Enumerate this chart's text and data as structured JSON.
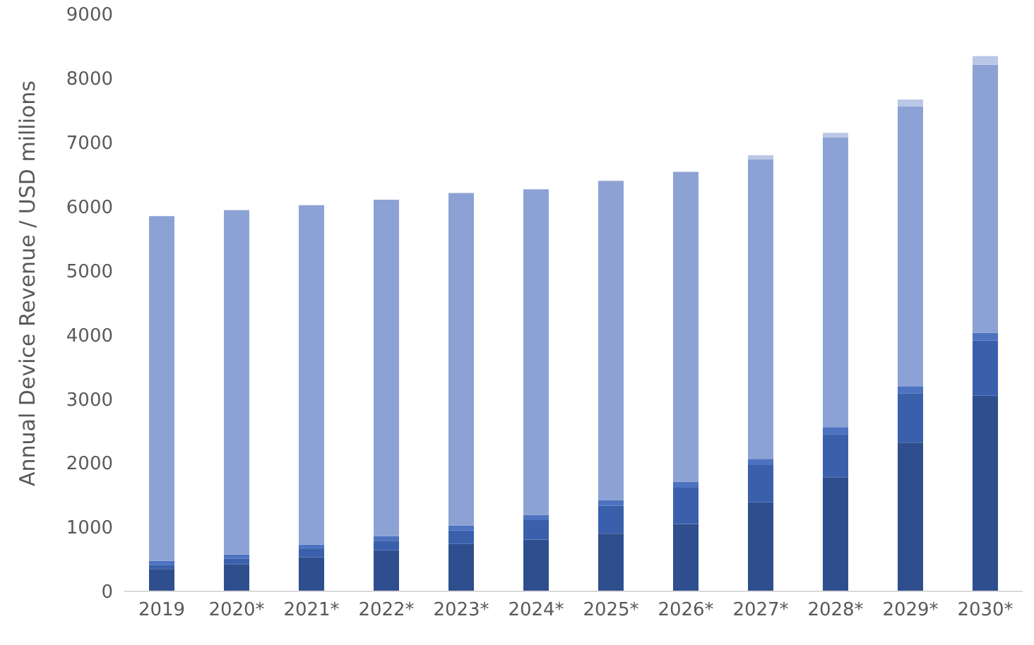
{
  "chart_data": {
    "type": "bar",
    "stacked": true,
    "ylabel": "Annual Device Revenue / USD millions",
    "categories": [
      "2019",
      "2020*",
      "2021*",
      "2022*",
      "2023*",
      "2024*",
      "2025*",
      "2026*",
      "2027*",
      "2028*",
      "2029*",
      "2030*"
    ],
    "series": [
      {
        "color": "#2f4e8e",
        "values": [
          350,
          420,
          530,
          640,
          740,
          810,
          900,
          1050,
          1390,
          1780,
          2320,
          3050
        ]
      },
      {
        "color": "#3a60ac",
        "values": [
          65,
          90,
          130,
          150,
          210,
          300,
          435,
          567,
          580,
          670,
          770,
          860
        ]
      },
      {
        "color": "#4d72c0",
        "values": [
          60,
          65,
          70,
          75,
          80,
          80,
          90,
          90,
          95,
          110,
          110,
          120
        ]
      },
      {
        "color": "#8da2d4",
        "values": [
          5375,
          5370,
          5290,
          5240,
          5180,
          5080,
          4975,
          4833,
          4675,
          4515,
          4360,
          4180
        ]
      },
      {
        "color": "#bac7e6",
        "values": [
          0,
          0,
          0,
          0,
          0,
          0,
          0,
          0,
          60,
          75,
          110,
          135
        ]
      }
    ],
    "ylim": [
      0,
      9000
    ],
    "yticks": [
      0,
      1000,
      2000,
      3000,
      4000,
      5000,
      6000,
      7000,
      8000,
      9000
    ],
    "grid": false,
    "legend": false
  }
}
